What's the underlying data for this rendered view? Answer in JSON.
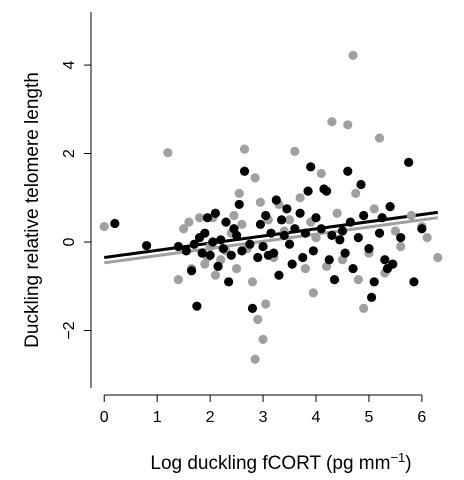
{
  "chart_data": {
    "type": "scatter",
    "title": "",
    "xlabel": "Log duckling fCORT (pg mm",
    "xlabel_superscript": "−1",
    "xlabel_suffix": ")",
    "ylabel": "Duckling relative telomere length",
    "xlim": [
      -0.25,
      6.55
    ],
    "ylim": [
      -3.3,
      5.2
    ],
    "x_ticks": [
      0,
      1,
      2,
      3,
      4,
      5,
      6
    ],
    "x_tick_labels": [
      "0",
      "1",
      "2",
      "3",
      "4",
      "5",
      "6"
    ],
    "y_ticks": [
      -2,
      0,
      2,
      4
    ],
    "y_tick_labels": [
      "−2",
      "0",
      "2",
      "4"
    ],
    "grid": false,
    "series": [
      {
        "color": "#a0a0a0",
        "fit": {
          "x": [
            0,
            6.3
          ],
          "y": [
            -0.47,
            0.55
          ]
        },
        "points": [
          [
            0.0,
            0.35
          ],
          [
            1.2,
            2.02
          ],
          [
            1.4,
            -0.85
          ],
          [
            1.5,
            0.3
          ],
          [
            1.6,
            0.45
          ],
          [
            1.65,
            -0.6
          ],
          [
            1.8,
            0.55
          ],
          [
            1.9,
            -0.5
          ],
          [
            1.95,
            -0.35
          ],
          [
            2.0,
            -0.1
          ],
          [
            2.05,
            0.55
          ],
          [
            2.1,
            -0.75
          ],
          [
            2.2,
            -0.4
          ],
          [
            2.3,
            -0.2
          ],
          [
            2.4,
            0.2
          ],
          [
            2.45,
            0.6
          ],
          [
            2.5,
            -0.6
          ],
          [
            2.55,
            1.1
          ],
          [
            2.6,
            0.4
          ],
          [
            2.65,
            2.1
          ],
          [
            2.7,
            -0.15
          ],
          [
            2.8,
            -0.9
          ],
          [
            2.85,
            1.45
          ],
          [
            2.85,
            -2.65
          ],
          [
            2.9,
            -1.75
          ],
          [
            2.95,
            0.9
          ],
          [
            3.0,
            -2.2
          ],
          [
            3.05,
            -1.4
          ],
          [
            3.1,
            0.5
          ],
          [
            3.2,
            -0.35
          ],
          [
            3.3,
            0.85
          ],
          [
            3.4,
            0.25
          ],
          [
            3.5,
            0.5
          ],
          [
            3.6,
            2.05
          ],
          [
            3.7,
            1.0
          ],
          [
            3.8,
            -0.6
          ],
          [
            3.9,
            0.45
          ],
          [
            3.95,
            -1.15
          ],
          [
            4.0,
            0.1
          ],
          [
            4.1,
            1.55
          ],
          [
            4.2,
            -0.55
          ],
          [
            4.3,
            2.72
          ],
          [
            4.4,
            0.65
          ],
          [
            4.5,
            -0.4
          ],
          [
            4.6,
            2.65
          ],
          [
            4.7,
            4.22
          ],
          [
            4.75,
            1.1
          ],
          [
            4.8,
            -0.85
          ],
          [
            4.9,
            -1.5
          ],
          [
            5.0,
            -0.25
          ],
          [
            5.1,
            0.75
          ],
          [
            5.2,
            2.35
          ],
          [
            5.3,
            -0.7
          ],
          [
            5.5,
            0.25
          ],
          [
            5.6,
            -0.1
          ],
          [
            5.8,
            0.6
          ],
          [
            6.0,
            0.35
          ],
          [
            6.1,
            0.1
          ],
          [
            6.3,
            -0.35
          ]
        ]
      },
      {
        "color": "#000000",
        "fit": {
          "x": [
            0,
            6.3
          ],
          "y": [
            -0.35,
            0.67
          ]
        },
        "points": [
          [
            0.2,
            0.42
          ],
          [
            0.8,
            -0.08
          ],
          [
            1.4,
            -0.1
          ],
          [
            1.55,
            -0.2
          ],
          [
            1.65,
            -0.65
          ],
          [
            1.7,
            -0.05
          ],
          [
            1.75,
            -1.45
          ],
          [
            1.8,
            0.1
          ],
          [
            1.85,
            -0.25
          ],
          [
            1.9,
            0.2
          ],
          [
            1.95,
            0.55
          ],
          [
            2.0,
            -0.3
          ],
          [
            2.05,
            0.0
          ],
          [
            2.1,
            0.65
          ],
          [
            2.15,
            -0.55
          ],
          [
            2.2,
            0.05
          ],
          [
            2.25,
            -0.15
          ],
          [
            2.3,
            0.45
          ],
          [
            2.35,
            -0.9
          ],
          [
            2.4,
            -0.3
          ],
          [
            2.45,
            0.3
          ],
          [
            2.5,
            0.15
          ],
          [
            2.55,
            0.85
          ],
          [
            2.6,
            -0.2
          ],
          [
            2.65,
            1.6
          ],
          [
            2.75,
            -0.05
          ],
          [
            2.8,
            -1.5
          ],
          [
            2.9,
            -0.35
          ],
          [
            2.95,
            0.4
          ],
          [
            3.0,
            -0.1
          ],
          [
            3.05,
            0.6
          ],
          [
            3.1,
            -0.3
          ],
          [
            3.15,
            0.2
          ],
          [
            3.2,
            -0.25
          ],
          [
            3.25,
            0.95
          ],
          [
            3.3,
            -0.75
          ],
          [
            3.35,
            0.5
          ],
          [
            3.4,
            0.15
          ],
          [
            3.45,
            0.75
          ],
          [
            3.5,
            -0.05
          ],
          [
            3.55,
            -0.5
          ],
          [
            3.6,
            0.3
          ],
          [
            3.7,
            0.65
          ],
          [
            3.75,
            -0.35
          ],
          [
            3.8,
            0.2
          ],
          [
            3.85,
            1.15
          ],
          [
            3.9,
            1.7
          ],
          [
            3.95,
            -0.2
          ],
          [
            4.0,
            0.55
          ],
          [
            4.1,
            0.3
          ],
          [
            4.15,
            1.2
          ],
          [
            4.2,
            1.15
          ],
          [
            4.25,
            -0.4
          ],
          [
            4.3,
            0.15
          ],
          [
            4.35,
            -0.85
          ],
          [
            4.45,
            0.05
          ],
          [
            4.5,
            0.25
          ],
          [
            4.55,
            -0.25
          ],
          [
            4.6,
            1.6
          ],
          [
            4.65,
            0.45
          ],
          [
            4.7,
            -0.6
          ],
          [
            4.8,
            0.1
          ],
          [
            4.85,
            1.3
          ],
          [
            4.9,
            0.6
          ],
          [
            5.0,
            -0.15
          ],
          [
            5.05,
            -1.25
          ],
          [
            5.1,
            -0.9
          ],
          [
            5.2,
            0.2
          ],
          [
            5.25,
            0.55
          ],
          [
            5.3,
            -0.4
          ],
          [
            5.35,
            -0.6
          ],
          [
            5.4,
            0.8
          ],
          [
            5.45,
            -0.5
          ],
          [
            5.6,
            0.1
          ],
          [
            5.75,
            1.8
          ],
          [
            5.85,
            -0.9
          ],
          [
            6.0,
            0.3
          ]
        ]
      }
    ]
  }
}
